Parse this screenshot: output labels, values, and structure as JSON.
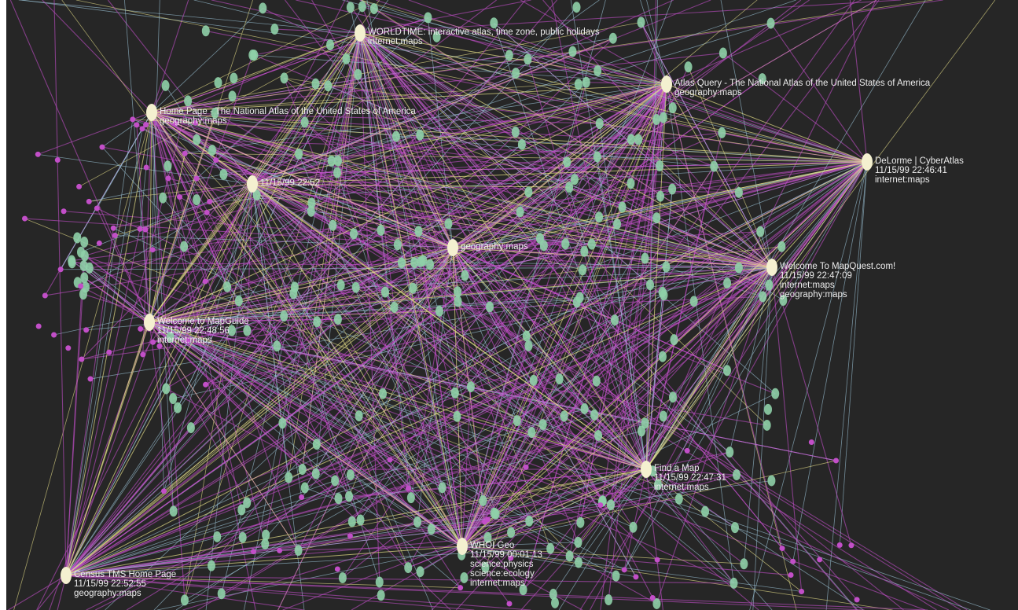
{
  "nodes": [
    {
      "lines": [
        "WORLDTIME: interactive atlas, time zone, public holidays",
        "internet:maps"
      ]
    },
    {
      "lines": [
        "Atlas Query - The National Atlas of the United States of America",
        "geography:maps"
      ]
    },
    {
      "lines": [
        "Home Page - The National Atlas of the United States of America",
        "geography:maps"
      ]
    },
    {
      "lines": [
        "DeLorme | CyberAtlas",
        "11/15/99 22:46:41",
        "internet:maps"
      ]
    },
    {
      "lines": [
        "11/15/99 22:52"
      ]
    },
    {
      "lines": [
        "geography:maps"
      ]
    },
    {
      "lines": [
        "Welcome To MapQuest.com!",
        "11/15/99 22:47:09",
        "internet:maps",
        "geography:maps"
      ]
    },
    {
      "lines": [
        "Welcome to MapGuide",
        "11/15/99 22:48:56",
        "internet:maps"
      ]
    },
    {
      "lines": [
        "Find a Map",
        "11/15/99 22:47:31",
        "internet:maps"
      ]
    },
    {
      "lines": [
        "WHOI Geo",
        "11/15/99 00:01:13",
        "science:physics",
        "science:ecology",
        "internet:maps"
      ]
    },
    {
      "lines": [
        "Census TMS Home Page",
        "11/15/99 22:52:55",
        "geography:maps"
      ]
    }
  ]
}
